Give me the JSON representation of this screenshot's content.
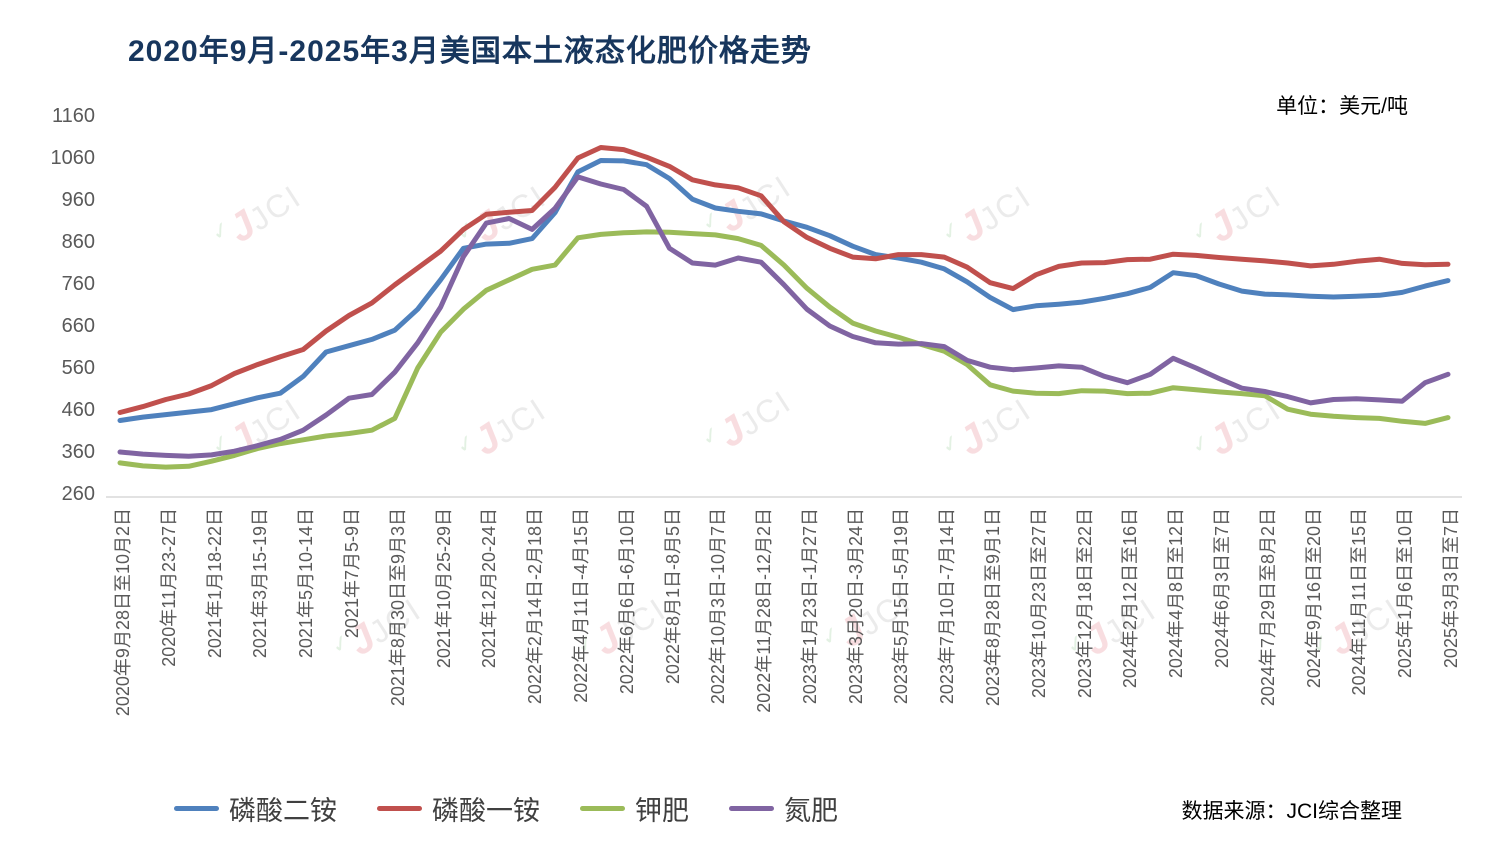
{
  "title": "2020年9月-2025年3月美国本土液态化肥价格走势",
  "unit_label": "单位：美元/吨",
  "source_label": "数据来源：JCI综合整理",
  "watermark": {
    "tick": "✓",
    "j": "J",
    "text": "JCI"
  },
  "chart_data": {
    "type": "line",
    "title": "2020年9月-2025年3月美国本土液态化肥价格走势",
    "ylabel": "美元/吨",
    "ylim": [
      260,
      1160
    ],
    "y_ticks": [
      1160,
      1060,
      960,
      860,
      760,
      660,
      560,
      460,
      360,
      260
    ],
    "grid": false,
    "legend_position": "bottom",
    "points_per_label_interval": 2,
    "x_labels": [
      "2020年9月28日至10月2日",
      "2020年11月23-27日",
      "2021年1月18-22日",
      "2021年3月15-19日",
      "2021年5月10-14日",
      "2021年7月5-9日",
      "2021年8月30日至9月3日",
      "2021年10月25-29日",
      "2021年12月20-24日",
      "2022年2月14日-2月18日",
      "2022年4月11日-4月15日",
      "2022年6月6日-6月10日",
      "2022年8月1日-8月5日",
      "2022年10月3日-10月7日",
      "2022年11月28日-12月2日",
      "2023年1月23日-1月27日",
      "2023年3月20日-3月24日",
      "2023年5月15日-5月19日",
      "2023年7月10日-7月14日",
      "2023年8月28日至9月1日",
      "2023年10月23日至27日",
      "2023年12月18日至22日",
      "2024年2月12日至16日",
      "2024年4月8日至12日",
      "2024年6月3日至7日",
      "2024年7月29日至8月2日",
      "2024年9月16日至20日",
      "2024年11月11日至15日",
      "2025年1月6日至10日",
      "2025年3月3日至7日"
    ],
    "series": [
      {
        "key": "dap",
        "name": "磷酸二铵",
        "color": "#4F81BD",
        "values": [
          435,
          443,
          449,
          455,
          461,
          475,
          489,
          500,
          540,
          598,
          613,
          628,
          650,
          700,
          770,
          845,
          855,
          857,
          868,
          930,
          1027,
          1054,
          1053,
          1044,
          1011,
          962,
          941,
          933,
          927,
          910,
          895,
          875,
          850,
          830,
          822,
          812,
          796,
          765,
          728,
          699,
          708,
          712,
          717,
          726,
          737,
          752,
          787,
          780,
          760,
          743,
          736,
          734,
          731,
          729,
          731,
          733,
          740,
          755,
          768
        ]
      },
      {
        "key": "map",
        "name": "磷酸一铵",
        "color": "#C0504D",
        "values": [
          454,
          468,
          485,
          498,
          518,
          547,
          568,
          587,
          604,
          648,
          685,
          715,
          758,
          798,
          838,
          890,
          926,
          931,
          935,
          990,
          1060,
          1085,
          1080,
          1062,
          1040,
          1008,
          996,
          989,
          970,
          908,
          871,
          845,
          824,
          820,
          830,
          830,
          824,
          800,
          763,
          749,
          782,
          802,
          810,
          811,
          818,
          819,
          831,
          828,
          823,
          819,
          815,
          810,
          803,
          807,
          814,
          819,
          809,
          806,
          807
        ]
      },
      {
        "key": "potash",
        "name": "钾肥",
        "color": "#9BBB59",
        "values": [
          334,
          327,
          324,
          326,
          338,
          352,
          368,
          380,
          389,
          398,
          404,
          412,
          440,
          560,
          645,
          700,
          745,
          770,
          795,
          805,
          870,
          878,
          882,
          884,
          883,
          880,
          877,
          868,
          852,
          805,
          750,
          705,
          667,
          648,
          633,
          616,
          600,
          568,
          520,
          505,
          500,
          499,
          506,
          505,
          499,
          500,
          513,
          508,
          503,
          499,
          494,
          462,
          450,
          445,
          442,
          440,
          433,
          428,
          442
        ]
      },
      {
        "key": "nitrogen",
        "name": "氮肥",
        "color": "#8064A2",
        "values": [
          360,
          355,
          352,
          350,
          353,
          362,
          375,
          390,
          412,
          448,
          488,
          497,
          550,
          620,
          705,
          825,
          905,
          916,
          890,
          940,
          1015,
          998,
          985,
          945,
          845,
          810,
          805,
          822,
          812,
          758,
          700,
          660,
          635,
          620,
          617,
          618,
          611,
          578,
          562,
          556,
          560,
          565,
          562,
          540,
          525,
          545,
          583,
          560,
          535,
          512,
          504,
          492,
          477,
          485,
          487,
          484,
          481,
          525,
          545
        ]
      }
    ]
  }
}
